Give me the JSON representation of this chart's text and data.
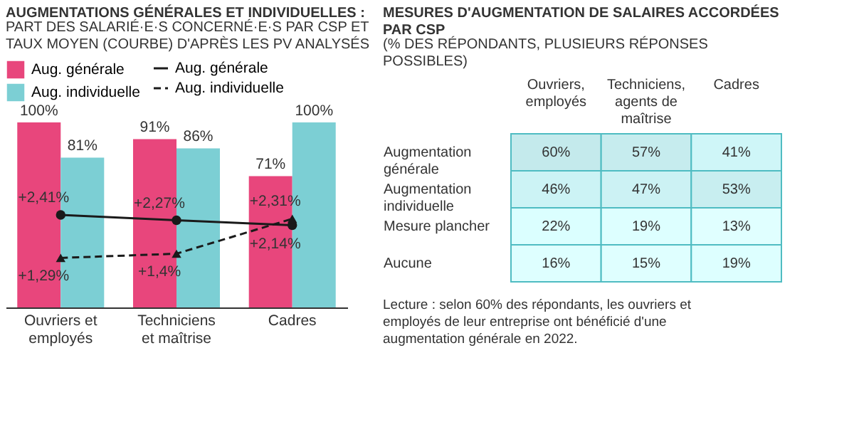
{
  "chart_data": [
    {
      "type": "bar",
      "title": "AUGMENTATIONS GÉNÉRALES ET INDIVIDUELLES :",
      "subtitle": "PART DES SALARIÉ·E·S CONCERNÉ·E·S PAR CSP ET TAUX MOYEN (COURBE) D'APRÈS LES PV ANALYSÉS",
      "categories": [
        "Ouvriers et employés",
        "Techniciens et maîtrise",
        "Cadres"
      ],
      "series": [
        {
          "name": "Aug. générale",
          "color": "#e8467c",
          "values": [
            100,
            91,
            71
          ],
          "value_labels": [
            "100%",
            "91%",
            "71%"
          ]
        },
        {
          "name": "Aug. individuelle",
          "color": "#7ccfd4",
          "values": [
            81,
            86,
            100
          ],
          "value_labels": [
            "81%",
            "86%",
            "100%"
          ]
        },
        {
          "name": "Aug. générale",
          "type": "line",
          "axis": "y2",
          "color": "#1a1a1a",
          "marker": "circle",
          "line_style": "solid",
          "values": [
            2.41,
            2.27,
            2.14
          ],
          "value_labels": [
            "+2,41%",
            "+2,27%",
            "+2,14%"
          ]
        },
        {
          "name": "Aug. individuelle",
          "type": "line",
          "axis": "y2",
          "color": "#1a1a1a",
          "marker": "triangle",
          "line_style": "dashed",
          "values": [
            1.29,
            1.4,
            2.31
          ],
          "value_labels": [
            "+1,29%",
            "+1,4%",
            "+2,31%"
          ]
        }
      ],
      "legend": "top left",
      "tick_labels": "x"
    },
    {
      "type": "heatmap",
      "title": "MESURES D'AUGMENTATION DE SALAIRES ACCORDÉES PAR CSP",
      "subtitle": "(% DES RÉPONDANTS, PLUSIEURS RÉPONSES POSSIBLES)",
      "categories": [
        "Ouvriers, employés",
        "Techniciens, agents de maîtrise",
        "Cadres"
      ],
      "y_categories": [
        "Augmentation générale",
        "Augmentation individuelle",
        "Mesure plancher",
        "Aucune"
      ],
      "cells": [
        [
          60,
          57,
          41
        ],
        [
          46,
          47,
          53
        ],
        [
          22,
          19,
          13
        ],
        [
          16,
          15,
          19
        ]
      ],
      "cell_labels": [
        [
          "60%",
          "57%",
          "41%"
        ],
        [
          "46%",
          "47%",
          "53%"
        ],
        [
          "22%",
          "19%",
          "13%"
        ],
        [
          "16%",
          "15%",
          "19%"
        ]
      ],
      "annotations": [
        "Lecture : selon 60% des répondants, les ouvriers et employés de leur entreprise ont bénéficié d'une augmentation générale en 2022."
      ]
    }
  ]
}
